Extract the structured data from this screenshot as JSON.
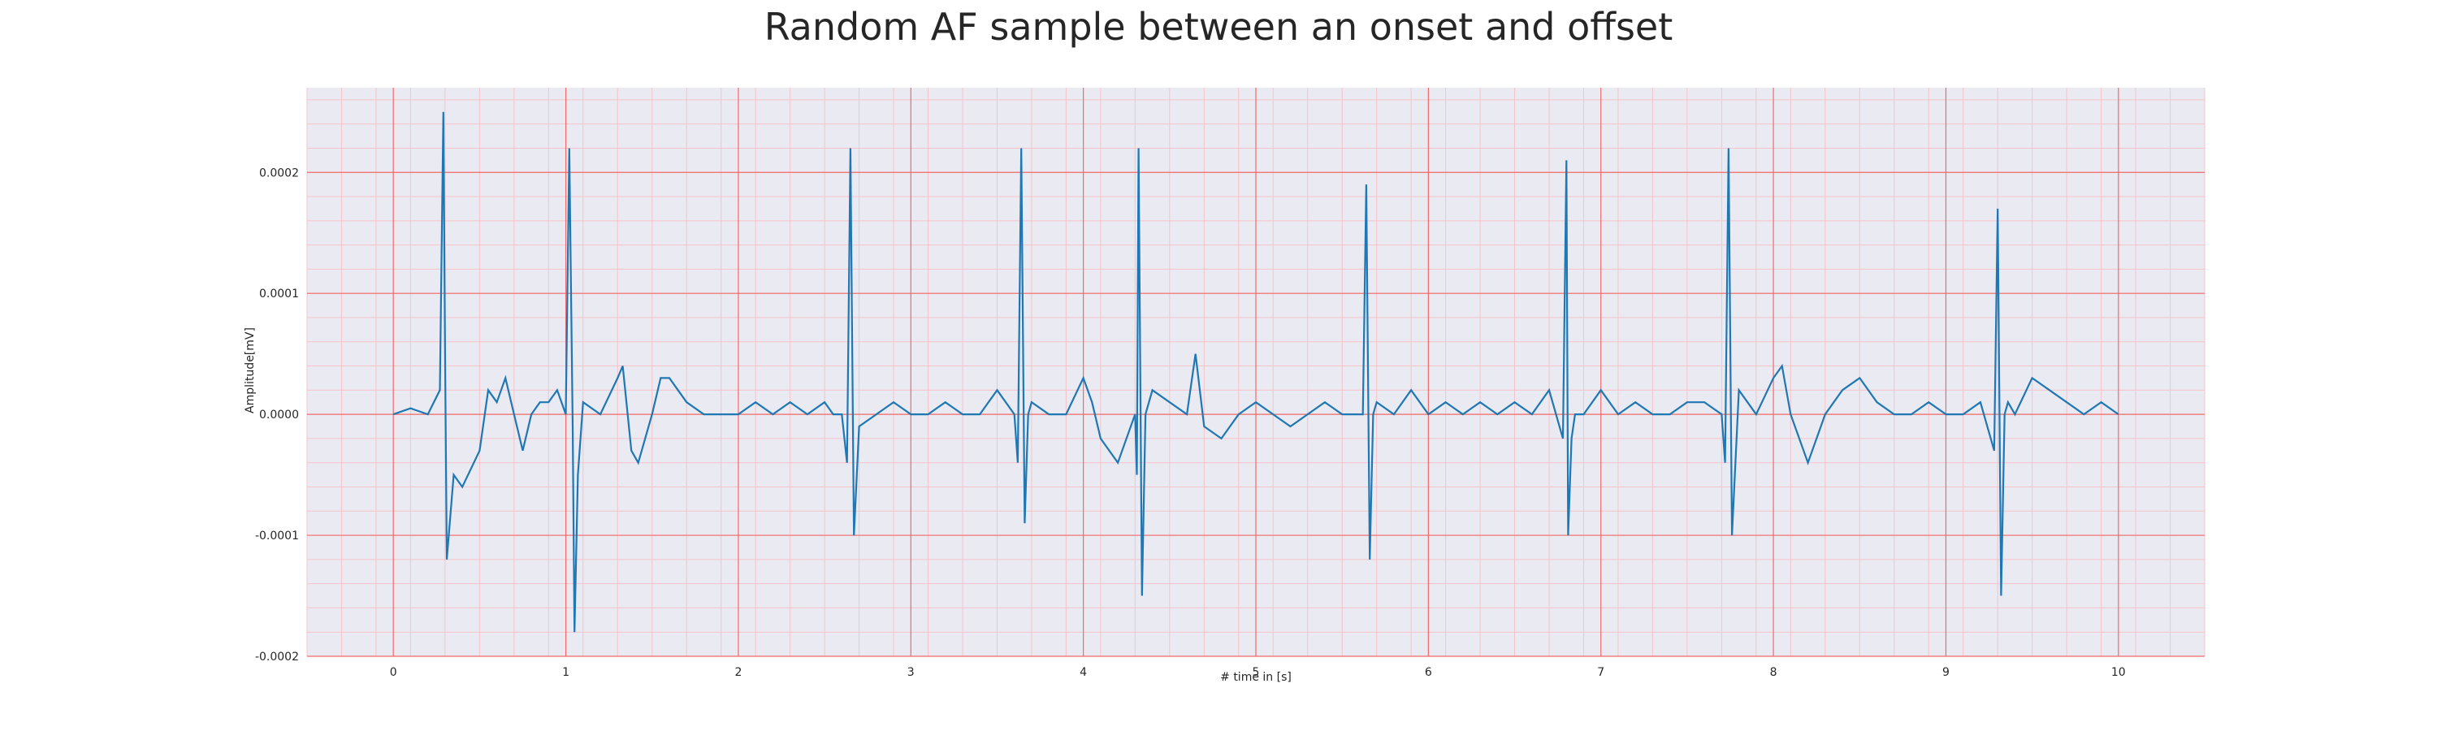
{
  "chart_data": {
    "type": "line",
    "title": "Random AF sample between an onset and offset",
    "xlabel": "# time in [s]",
    "ylabel": "Amplitude[mV]",
    "xlim": [
      -0.5,
      10.5
    ],
    "ylim": [
      -0.0002,
      0.00027
    ],
    "xticks": [
      0,
      1,
      2,
      3,
      4,
      5,
      6,
      7,
      8,
      9,
      10
    ],
    "xtick_labels": [
      "0",
      "1",
      "2",
      "3",
      "4",
      "5",
      "6",
      "7",
      "8",
      "9",
      "10"
    ],
    "yticks": [
      -0.0002,
      -0.0001,
      0,
      0.0001,
      0.0002
    ],
    "ytick_labels": [
      "-0.0002",
      "-0.0001",
      "0.0000",
      "0.0001",
      "0.0002"
    ],
    "grid": true,
    "colors": {
      "line": "#1f77b4",
      "plot_background": "#eaeaf2",
      "major_grid": "#ef6a6a",
      "minor_grid": "#f6c3c8"
    },
    "series": [
      {
        "x": [
          0,
          0.1,
          0.2,
          0.27,
          0.29,
          0.3,
          0.31,
          0.35,
          0.4,
          0.5,
          0.55,
          0.6,
          0.65,
          0.7,
          0.75,
          0.8,
          0.85,
          0.9,
          0.95,
          1.0,
          1.02,
          1.04,
          1.05,
          1.07,
          1.1,
          1.2,
          1.3,
          1.33,
          1.38,
          1.42,
          1.5,
          1.55,
          1.6,
          1.65,
          1.7,
          1.8,
          1.9,
          2.0,
          2.1,
          2.2,
          2.3,
          2.4,
          2.5,
          2.55,
          2.6,
          2.63,
          2.65,
          2.67,
          2.7,
          2.8,
          2.9,
          3.0,
          3.1,
          3.2,
          3.3,
          3.4,
          3.5,
          3.6,
          3.62,
          3.64,
          3.66,
          3.68,
          3.7,
          3.8,
          3.9,
          4.0,
          4.05,
          4.1,
          4.2,
          4.3,
          4.31,
          4.32,
          4.34,
          4.36,
          4.4,
          4.5,
          4.6,
          4.65,
          4.7,
          4.8,
          4.9,
          5.0,
          5.1,
          5.2,
          5.3,
          5.4,
          5.5,
          5.6,
          5.62,
          5.64,
          5.66,
          5.68,
          5.7,
          5.8,
          5.9,
          6.0,
          6.1,
          6.2,
          6.3,
          6.4,
          6.5,
          6.6,
          6.7,
          6.78,
          6.8,
          6.81,
          6.83,
          6.85,
          6.9,
          7.0,
          7.1,
          7.2,
          7.3,
          7.4,
          7.5,
          7.6,
          7.7,
          7.72,
          7.74,
          7.76,
          7.8,
          7.9,
          8.0,
          8.05,
          8.1,
          8.2,
          8.3,
          8.4,
          8.5,
          8.6,
          8.7,
          8.8,
          8.9,
          9.0,
          9.1,
          9.2,
          9.28,
          9.3,
          9.32,
          9.34,
          9.36,
          9.4,
          9.5,
          9.6,
          9.7,
          9.8,
          9.9,
          10.0
        ],
        "y": [
          0.0,
          5e-06,
          0.0,
          2e-05,
          0.00025,
          5e-05,
          -0.00012,
          -5e-05,
          -6e-05,
          -3e-05,
          2e-05,
          1e-05,
          3e-05,
          0.0,
          -3e-05,
          0.0,
          1e-05,
          1e-05,
          2e-05,
          0.0,
          0.00022,
          -1e-05,
          -0.00018,
          -5e-05,
          1e-05,
          0.0,
          3e-05,
          4e-05,
          -3e-05,
          -4e-05,
          0.0,
          3e-05,
          3e-05,
          2e-05,
          1e-05,
          0.0,
          0.0,
          0.0,
          1e-05,
          0.0,
          1e-05,
          0.0,
          1e-05,
          0.0,
          0.0,
          -4e-05,
          0.00022,
          -0.0001,
          -1e-05,
          0.0,
          1e-05,
          0.0,
          0.0,
          1e-05,
          0.0,
          0.0,
          2e-05,
          0.0,
          -4e-05,
          0.00022,
          -9e-05,
          0.0,
          1e-05,
          0.0,
          0.0,
          3e-05,
          1e-05,
          -2e-05,
          -4e-05,
          0.0,
          -5e-05,
          0.00022,
          -0.00015,
          0.0,
          2e-05,
          1e-05,
          0.0,
          5e-05,
          -1e-05,
          -2e-05,
          0.0,
          1e-05,
          0.0,
          -1e-05,
          0.0,
          1e-05,
          0.0,
          0.0,
          0.0,
          0.00019,
          -0.00012,
          0.0,
          1e-05,
          0.0,
          2e-05,
          0.0,
          1e-05,
          0.0,
          1e-05,
          0.0,
          1e-05,
          0.0,
          2e-05,
          -2e-05,
          0.00021,
          -0.0001,
          -2e-05,
          0.0,
          0.0,
          2e-05,
          0.0,
          1e-05,
          0.0,
          0.0,
          1e-05,
          1e-05,
          0.0,
          -4e-05,
          0.00022,
          -0.0001,
          2e-05,
          0.0,
          3e-05,
          4e-05,
          0.0,
          -4e-05,
          0.0,
          2e-05,
          3e-05,
          1e-05,
          0.0,
          0.0,
          1e-05,
          0.0,
          0.0,
          1e-05,
          -3e-05,
          0.00017,
          -0.00015,
          0.0,
          1e-05,
          0.0,
          3e-05,
          2e-05,
          1e-05,
          0.0,
          1e-05,
          0.0
        ]
      }
    ]
  }
}
